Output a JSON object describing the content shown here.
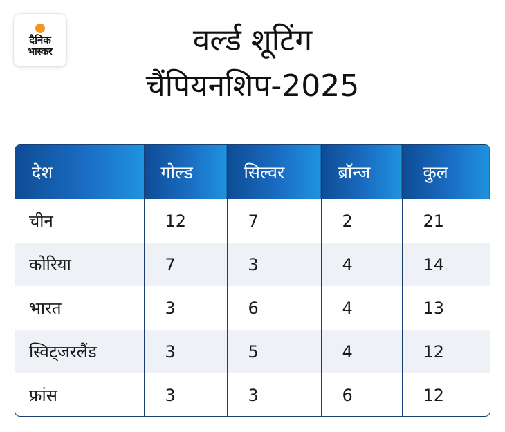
{
  "logo": {
    "line1": "दैनिक",
    "line2": "भास्कर"
  },
  "title": {
    "line1": "वर्ल्ड शूटिंग",
    "line2": "चैंपियनशिप-2025"
  },
  "table": {
    "headers": [
      "देश",
      "गोल्ड",
      "सिल्वर",
      "ब्रॉन्ज",
      "कुल"
    ],
    "rows": [
      [
        "चीन",
        "12",
        "7",
        "2",
        "21"
      ],
      [
        "कोरिया",
        "7",
        "3",
        "4",
        "14"
      ],
      [
        "भारत",
        "3",
        "6",
        "4",
        "13"
      ],
      [
        "स्विट्जरलैंड",
        "3",
        "5",
        "4",
        "12"
      ],
      [
        "फ्रांस",
        "3",
        "3",
        "6",
        "12"
      ]
    ]
  },
  "colors": {
    "header_start": "#0e4c95",
    "header_end": "#1f93de",
    "row_alt": "#eef1f5",
    "border": "#1c3f72",
    "logo_accent": "#f7941d"
  }
}
